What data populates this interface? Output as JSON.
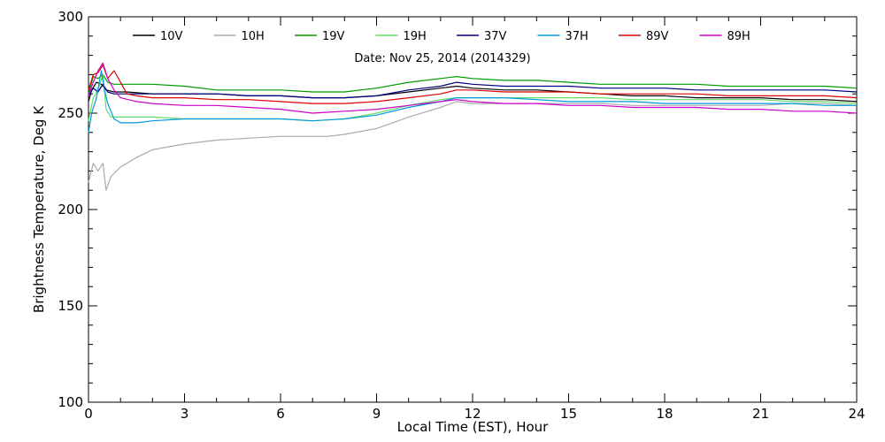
{
  "chart_data": {
    "type": "line",
    "title": "",
    "subtitle": "Date: Nov 25, 2014 (2014329)",
    "xlabel": "Local Time (EST), Hour",
    "ylabel": "Brightness Temperature, Deg K",
    "xlim": [
      0,
      24
    ],
    "ylim": [
      100,
      300
    ],
    "x_ticks": [
      0,
      3,
      6,
      9,
      12,
      15,
      18,
      21,
      24
    ],
    "y_ticks": [
      100,
      150,
      200,
      250,
      300
    ],
    "grid": false,
    "legend_position": "top",
    "series": [
      {
        "name": "10V",
        "color": "#000000",
        "points": [
          [
            0,
            256
          ],
          [
            0.1,
            262
          ],
          [
            0.25,
            266
          ],
          [
            0.4,
            265
          ],
          [
            0.55,
            262
          ],
          [
            0.8,
            261
          ],
          [
            1.2,
            261
          ],
          [
            2,
            260
          ],
          [
            3,
            260
          ],
          [
            4,
            260
          ],
          [
            5,
            259
          ],
          [
            6,
            259
          ],
          [
            7,
            258
          ],
          [
            8,
            258
          ],
          [
            9,
            259
          ],
          [
            10,
            261
          ],
          [
            11,
            263
          ],
          [
            11.5,
            264
          ],
          [
            12,
            263
          ],
          [
            13,
            262
          ],
          [
            14,
            262
          ],
          [
            15,
            261
          ],
          [
            16,
            260
          ],
          [
            17,
            259
          ],
          [
            18,
            259
          ],
          [
            19,
            258
          ],
          [
            20,
            258
          ],
          [
            21,
            258
          ],
          [
            22,
            257
          ],
          [
            23,
            257
          ],
          [
            24,
            256
          ]
        ]
      },
      {
        "name": "10H",
        "color": "#aaaaaa",
        "points": [
          [
            0,
            214
          ],
          [
            0.15,
            224
          ],
          [
            0.3,
            220
          ],
          [
            0.45,
            224
          ],
          [
            0.55,
            210
          ],
          [
            0.7,
            217
          ],
          [
            1,
            222
          ],
          [
            1.5,
            227
          ],
          [
            2,
            231
          ],
          [
            3,
            234
          ],
          [
            4,
            236
          ],
          [
            5,
            237
          ],
          [
            6,
            238
          ],
          [
            7,
            238
          ],
          [
            7.5,
            238
          ],
          [
            8,
            239
          ],
          [
            9,
            242
          ],
          [
            10,
            248
          ],
          [
            11,
            253
          ],
          [
            11.5,
            256
          ],
          [
            12,
            255
          ],
          [
            13,
            255
          ],
          [
            14,
            255
          ],
          [
            15,
            255
          ],
          [
            16,
            255
          ],
          [
            17,
            254
          ],
          [
            18,
            254
          ],
          [
            19,
            254
          ],
          [
            20,
            254
          ],
          [
            21,
            254
          ],
          [
            22,
            255
          ],
          [
            23,
            255
          ],
          [
            24,
            254
          ]
        ]
      },
      {
        "name": "19V",
        "color": "#009900",
        "points": [
          [
            0,
            260
          ],
          [
            0.15,
            269
          ],
          [
            0.3,
            268
          ],
          [
            0.45,
            270
          ],
          [
            0.6,
            266
          ],
          [
            0.8,
            265
          ],
          [
            1.5,
            265
          ],
          [
            2,
            265
          ],
          [
            3,
            264
          ],
          [
            4,
            262
          ],
          [
            5,
            262
          ],
          [
            6,
            262
          ],
          [
            7,
            261
          ],
          [
            8,
            261
          ],
          [
            9,
            263
          ],
          [
            10,
            266
          ],
          [
            11,
            268
          ],
          [
            11.5,
            269
          ],
          [
            12,
            268
          ],
          [
            13,
            267
          ],
          [
            14,
            267
          ],
          [
            15,
            266
          ],
          [
            16,
            265
          ],
          [
            17,
            265
          ],
          [
            18,
            265
          ],
          [
            19,
            265
          ],
          [
            20,
            264
          ],
          [
            21,
            264
          ],
          [
            22,
            264
          ],
          [
            23,
            264
          ],
          [
            24,
            263
          ]
        ]
      },
      {
        "name": "19H",
        "color": "#66dd66",
        "points": [
          [
            0,
            246
          ],
          [
            0.15,
            258
          ],
          [
            0.3,
            262
          ],
          [
            0.45,
            270
          ],
          [
            0.55,
            252
          ],
          [
            0.7,
            248
          ],
          [
            1,
            248
          ],
          [
            1.5,
            248
          ],
          [
            2,
            248
          ],
          [
            3,
            247
          ],
          [
            4,
            247
          ],
          [
            5,
            247
          ],
          [
            6,
            247
          ],
          [
            7,
            246
          ],
          [
            8,
            247
          ],
          [
            9,
            250
          ],
          [
            10,
            254
          ],
          [
            11,
            257
          ],
          [
            11.5,
            258
          ],
          [
            12,
            258
          ],
          [
            13,
            258
          ],
          [
            14,
            258
          ],
          [
            15,
            258
          ],
          [
            16,
            258
          ],
          [
            17,
            257
          ],
          [
            18,
            257
          ],
          [
            19,
            257
          ],
          [
            20,
            257
          ],
          [
            21,
            257
          ],
          [
            22,
            256
          ],
          [
            23,
            256
          ],
          [
            24,
            255
          ]
        ]
      },
      {
        "name": "37V",
        "color": "#000080",
        "points": [
          [
            0,
            259
          ],
          [
            0.15,
            263
          ],
          [
            0.3,
            261
          ],
          [
            0.45,
            265
          ],
          [
            0.6,
            261
          ],
          [
            0.8,
            260
          ],
          [
            1.5,
            260
          ],
          [
            2,
            260
          ],
          [
            3,
            260
          ],
          [
            4,
            260
          ],
          [
            5,
            259
          ],
          [
            6,
            259
          ],
          [
            7,
            258
          ],
          [
            8,
            258
          ],
          [
            9,
            259
          ],
          [
            10,
            262
          ],
          [
            11,
            264
          ],
          [
            11.5,
            266
          ],
          [
            12,
            265
          ],
          [
            13,
            264
          ],
          [
            14,
            264
          ],
          [
            15,
            264
          ],
          [
            16,
            263
          ],
          [
            17,
            263
          ],
          [
            18,
            263
          ],
          [
            19,
            262
          ],
          [
            20,
            262
          ],
          [
            21,
            262
          ],
          [
            22,
            262
          ],
          [
            23,
            262
          ],
          [
            24,
            261
          ]
        ]
      },
      {
        "name": "37H",
        "color": "#0099dd",
        "points": [
          [
            0,
            240
          ],
          [
            0.1,
            250
          ],
          [
            0.25,
            258
          ],
          [
            0.4,
            272
          ],
          [
            0.5,
            262
          ],
          [
            0.6,
            255
          ],
          [
            0.8,
            247
          ],
          [
            1,
            245
          ],
          [
            1.5,
            245
          ],
          [
            2,
            246
          ],
          [
            3,
            247
          ],
          [
            4,
            247
          ],
          [
            5,
            247
          ],
          [
            6,
            247
          ],
          [
            7,
            246
          ],
          [
            8,
            247
          ],
          [
            9,
            249
          ],
          [
            10,
            253
          ],
          [
            11,
            256
          ],
          [
            11.5,
            258
          ],
          [
            12,
            258
          ],
          [
            13,
            258
          ],
          [
            14,
            257
          ],
          [
            15,
            256
          ],
          [
            16,
            256
          ],
          [
            17,
            256
          ],
          [
            18,
            255
          ],
          [
            19,
            255
          ],
          [
            20,
            255
          ],
          [
            21,
            255
          ],
          [
            22,
            255
          ],
          [
            23,
            254
          ],
          [
            24,
            254
          ]
        ]
      },
      {
        "name": "89V",
        "color": "#dd0000",
        "points": [
          [
            0,
            262
          ],
          [
            0.15,
            270
          ],
          [
            0.3,
            271
          ],
          [
            0.45,
            275
          ],
          [
            0.6,
            268
          ],
          [
            0.8,
            272
          ],
          [
            1,
            266
          ],
          [
            1.2,
            260
          ],
          [
            1.5,
            259
          ],
          [
            2,
            258
          ],
          [
            3,
            258
          ],
          [
            4,
            257
          ],
          [
            5,
            257
          ],
          [
            6,
            256
          ],
          [
            7,
            255
          ],
          [
            8,
            255
          ],
          [
            9,
            256
          ],
          [
            10,
            258
          ],
          [
            11,
            260
          ],
          [
            11.5,
            262
          ],
          [
            12,
            262
          ],
          [
            13,
            261
          ],
          [
            14,
            261
          ],
          [
            15,
            261
          ],
          [
            16,
            260
          ],
          [
            17,
            260
          ],
          [
            18,
            260
          ],
          [
            19,
            260
          ],
          [
            20,
            259
          ],
          [
            21,
            259
          ],
          [
            22,
            259
          ],
          [
            23,
            259
          ],
          [
            24,
            258
          ]
        ]
      },
      {
        "name": "89H",
        "color": "#cc00cc",
        "points": [
          [
            0,
            259
          ],
          [
            0.15,
            266
          ],
          [
            0.3,
            272
          ],
          [
            0.45,
            276
          ],
          [
            0.6,
            268
          ],
          [
            0.8,
            262
          ],
          [
            1,
            258
          ],
          [
            1.5,
            256
          ],
          [
            2,
            255
          ],
          [
            3,
            254
          ],
          [
            4,
            254
          ],
          [
            5,
            253
          ],
          [
            6,
            252
          ],
          [
            7,
            250
          ],
          [
            8,
            251
          ],
          [
            9,
            252
          ],
          [
            10,
            254
          ],
          [
            11,
            256
          ],
          [
            11.5,
            257
          ],
          [
            12,
            256
          ],
          [
            13,
            255
          ],
          [
            14,
            255
          ],
          [
            15,
            254
          ],
          [
            16,
            254
          ],
          [
            17,
            253
          ],
          [
            18,
            253
          ],
          [
            19,
            253
          ],
          [
            20,
            252
          ],
          [
            21,
            252
          ],
          [
            22,
            251
          ],
          [
            23,
            251
          ],
          [
            24,
            250
          ]
        ]
      }
    ]
  }
}
